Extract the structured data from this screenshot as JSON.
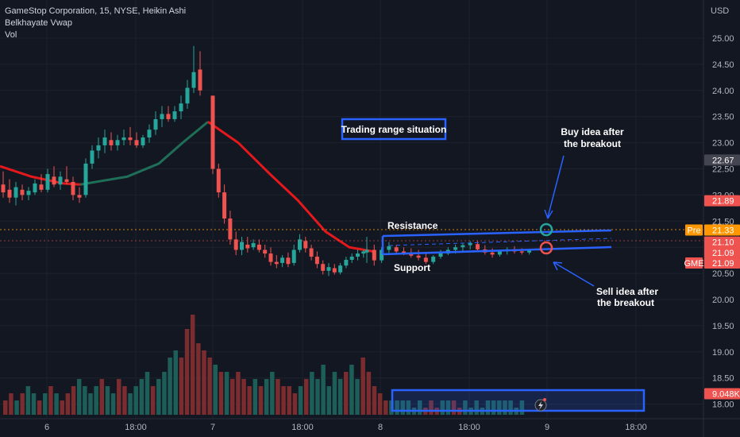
{
  "legend": {
    "line1": "GameStop Corporation, 15, NYSE, Heikin Ashi",
    "line2": "Belkhayate Vwap",
    "line3": "Vol"
  },
  "colors": {
    "background": "#131722",
    "up": "#26a69a",
    "down": "#ef5350",
    "vwap_red": "#e5181c",
    "vwap_green": "#1f6e57",
    "annotation_blue": "#2962ff",
    "axis_text": "#b2b5be",
    "orange": "#ff9800"
  },
  "chart_data": {
    "type": "candlestick",
    "currency": "USD",
    "y_ticks": [
      "25.00",
      "24.50",
      "24.00",
      "23.50",
      "23.00",
      "22.50",
      "22.00",
      "21.50",
      "21.00",
      "20.50",
      "20.00",
      "19.50",
      "19.00",
      "18.50",
      "18.00"
    ],
    "ylim": [
      17.85,
      25.35
    ],
    "x_ticks": [
      "6",
      "18:00",
      "7",
      "18:00",
      "8",
      "18:00",
      "9",
      "18:00"
    ],
    "price_tags": [
      {
        "label": "22.67",
        "value": 22.67,
        "color": "#434651"
      },
      {
        "label": "21.89",
        "value": 21.89,
        "color": "#ef5350"
      },
      {
        "label": "21.33",
        "value": 21.33,
        "color": "#ff9800",
        "prefix": "Pre"
      },
      {
        "label": "21.10",
        "value": 21.1,
        "color": "#ef5350"
      },
      {
        "label": "21.09",
        "value": 20.9,
        "color": "#ef5350"
      },
      {
        "label": "21.09",
        "value": 20.7,
        "color": "#ef5350",
        "prefix": "GME"
      },
      {
        "label": "9.048K",
        "value": 18.2,
        "color": "#ef5350"
      }
    ],
    "annotations": {
      "title_box": "Trading range situation",
      "resistance": "Resistance",
      "support": "Support",
      "buy": [
        "Buy idea after",
        "the breakout"
      ],
      "sell": [
        "Sell idea after",
        "the breakout"
      ]
    },
    "candles_day1": [
      {
        "o": 22.2,
        "h": 22.45,
        "l": 21.95,
        "c": 22.05
      },
      {
        "o": 22.1,
        "h": 22.3,
        "l": 21.85,
        "c": 21.95
      },
      {
        "o": 21.95,
        "h": 22.25,
        "l": 21.8,
        "c": 22.15
      },
      {
        "o": 22.1,
        "h": 22.2,
        "l": 21.9,
        "c": 22.0
      },
      {
        "o": 22.0,
        "h": 22.15,
        "l": 21.9,
        "c": 22.08
      },
      {
        "o": 22.05,
        "h": 22.3,
        "l": 22.0,
        "c": 22.22
      },
      {
        "o": 22.2,
        "h": 22.4,
        "l": 22.05,
        "c": 22.1
      },
      {
        "o": 22.1,
        "h": 22.5,
        "l": 22.05,
        "c": 22.4
      },
      {
        "o": 22.35,
        "h": 22.55,
        "l": 22.15,
        "c": 22.2
      },
      {
        "o": 22.2,
        "h": 22.45,
        "l": 22.1,
        "c": 22.35
      },
      {
        "o": 22.3,
        "h": 22.55,
        "l": 22.2,
        "c": 22.25
      },
      {
        "o": 22.25,
        "h": 22.35,
        "l": 21.9,
        "c": 22.0
      },
      {
        "o": 22.0,
        "h": 22.15,
        "l": 21.85,
        "c": 21.95
      },
      {
        "o": 22.0,
        "h": 22.7,
        "l": 21.95,
        "c": 22.6
      },
      {
        "o": 22.6,
        "h": 22.95,
        "l": 22.5,
        "c": 22.85
      },
      {
        "o": 22.85,
        "h": 23.1,
        "l": 22.7,
        "c": 22.95
      },
      {
        "o": 22.95,
        "h": 23.25,
        "l": 22.8,
        "c": 23.1
      },
      {
        "o": 23.05,
        "h": 23.2,
        "l": 22.85,
        "c": 22.95
      },
      {
        "o": 22.95,
        "h": 23.15,
        "l": 22.85,
        "c": 23.05
      },
      {
        "o": 23.05,
        "h": 23.25,
        "l": 22.95,
        "c": 23.1
      },
      {
        "o": 23.1,
        "h": 23.3,
        "l": 22.95,
        "c": 23.05
      },
      {
        "o": 23.05,
        "h": 23.2,
        "l": 22.9,
        "c": 22.95
      },
      {
        "o": 22.95,
        "h": 23.15,
        "l": 22.9,
        "c": 23.1
      },
      {
        "o": 23.1,
        "h": 23.35,
        "l": 23.0,
        "c": 23.25
      },
      {
        "o": 23.25,
        "h": 23.6,
        "l": 23.15,
        "c": 23.45
      },
      {
        "o": 23.45,
        "h": 23.7,
        "l": 23.3,
        "c": 23.55
      },
      {
        "o": 23.55,
        "h": 23.7,
        "l": 23.4,
        "c": 23.45
      },
      {
        "o": 23.45,
        "h": 23.7,
        "l": 23.4,
        "c": 23.6
      },
      {
        "o": 23.6,
        "h": 23.9,
        "l": 23.45,
        "c": 23.75
      },
      {
        "o": 23.75,
        "h": 24.2,
        "l": 23.65,
        "c": 24.05
      },
      {
        "o": 24.05,
        "h": 24.85,
        "l": 23.95,
        "c": 24.35
      },
      {
        "o": 24.4,
        "h": 24.75,
        "l": 23.9,
        "c": 24.0
      }
    ],
    "candles_day2": [
      {
        "o": 23.9,
        "h": 23.9,
        "l": 22.4,
        "c": 22.5
      },
      {
        "o": 22.5,
        "h": 22.6,
        "l": 21.95,
        "c": 22.05
      },
      {
        "o": 22.05,
        "h": 22.2,
        "l": 21.45,
        "c": 21.55
      },
      {
        "o": 21.55,
        "h": 21.7,
        "l": 21.05,
        "c": 21.15
      },
      {
        "o": 21.15,
        "h": 21.3,
        "l": 20.85,
        "c": 20.95
      },
      {
        "o": 20.95,
        "h": 21.2,
        "l": 20.85,
        "c": 21.1
      },
      {
        "o": 21.05,
        "h": 21.2,
        "l": 20.9,
        "c": 20.98
      },
      {
        "o": 21.0,
        "h": 21.15,
        "l": 20.95,
        "c": 21.08
      },
      {
        "o": 21.05,
        "h": 21.15,
        "l": 20.9,
        "c": 20.95
      },
      {
        "o": 20.95,
        "h": 21.05,
        "l": 20.8,
        "c": 20.88
      },
      {
        "o": 20.88,
        "h": 21.0,
        "l": 20.65,
        "c": 20.72
      },
      {
        "o": 20.72,
        "h": 20.85,
        "l": 20.6,
        "c": 20.68
      },
      {
        "o": 20.7,
        "h": 20.85,
        "l": 20.62,
        "c": 20.8
      },
      {
        "o": 20.8,
        "h": 20.9,
        "l": 20.62,
        "c": 20.68
      },
      {
        "o": 20.7,
        "h": 21.05,
        "l": 20.65,
        "c": 20.95
      },
      {
        "o": 20.95,
        "h": 21.25,
        "l": 20.9,
        "c": 21.15
      },
      {
        "o": 21.12,
        "h": 21.2,
        "l": 20.9,
        "c": 20.98
      },
      {
        "o": 20.98,
        "h": 21.05,
        "l": 20.75,
        "c": 20.82
      },
      {
        "o": 20.82,
        "h": 20.92,
        "l": 20.6,
        "c": 20.68
      },
      {
        "o": 20.68,
        "h": 20.75,
        "l": 20.48,
        "c": 20.55
      },
      {
        "o": 20.55,
        "h": 20.7,
        "l": 20.45,
        "c": 20.62
      },
      {
        "o": 20.6,
        "h": 20.68,
        "l": 20.48,
        "c": 20.52
      },
      {
        "o": 20.52,
        "h": 20.7,
        "l": 20.48,
        "c": 20.65
      },
      {
        "o": 20.65,
        "h": 20.82,
        "l": 20.6,
        "c": 20.76
      },
      {
        "o": 20.76,
        "h": 20.88,
        "l": 20.7,
        "c": 20.82
      },
      {
        "o": 20.82,
        "h": 20.95,
        "l": 20.75,
        "c": 20.88
      },
      {
        "o": 20.88,
        "h": 20.95,
        "l": 20.8,
        "c": 20.92
      }
    ],
    "candles_day3": [
      {
        "o": 20.9,
        "h": 21.2,
        "l": 20.7,
        "c": 20.95
      },
      {
        "o": 20.95,
        "h": 21.05,
        "l": 20.65,
        "c": 20.75
      },
      {
        "o": 20.75,
        "h": 21.0,
        "l": 20.7,
        "c": 20.95
      },
      {
        "o": 20.95,
        "h": 21.1,
        "l": 20.85,
        "c": 21.02
      },
      {
        "o": 21.0,
        "h": 21.05,
        "l": 20.88,
        "c": 20.92
      },
      {
        "o": 20.92,
        "h": 21.0,
        "l": 20.85,
        "c": 20.88
      },
      {
        "o": 20.88,
        "h": 20.98,
        "l": 20.8,
        "c": 20.84
      },
      {
        "o": 20.84,
        "h": 20.95,
        "l": 20.75,
        "c": 20.8
      },
      {
        "o": 20.8,
        "h": 20.9,
        "l": 20.68,
        "c": 20.72
      },
      {
        "o": 20.72,
        "h": 20.85,
        "l": 20.68,
        "c": 20.82
      },
      {
        "o": 20.82,
        "h": 20.95,
        "l": 20.78,
        "c": 20.9
      },
      {
        "o": 20.88,
        "h": 21.0,
        "l": 20.85,
        "c": 20.95
      },
      {
        "o": 20.95,
        "h": 21.05,
        "l": 20.88,
        "c": 21.0
      },
      {
        "o": 21.0,
        "h": 21.08,
        "l": 20.92,
        "c": 21.04
      },
      {
        "o": 21.04,
        "h": 21.12,
        "l": 20.96,
        "c": 21.08
      },
      {
        "o": 21.06,
        "h": 21.12,
        "l": 20.92,
        "c": 20.96
      },
      {
        "o": 20.96,
        "h": 21.04,
        "l": 20.86,
        "c": 20.9
      },
      {
        "o": 20.9,
        "h": 20.98,
        "l": 20.8,
        "c": 20.86
      },
      {
        "o": 20.86,
        "h": 20.95,
        "l": 20.82,
        "c": 20.92
      },
      {
        "o": 20.92,
        "h": 21.0,
        "l": 20.86,
        "c": 20.96
      },
      {
        "o": 20.96,
        "h": 21.02,
        "l": 20.88,
        "c": 20.92
      },
      {
        "o": 20.92,
        "h": 20.98,
        "l": 20.86,
        "c": 20.9
      },
      {
        "o": 20.9,
        "h": 20.96,
        "l": 20.86,
        "c": 20.94
      }
    ],
    "volumes": [
      2,
      3,
      2,
      3,
      4,
      3,
      2,
      3,
      4,
      3,
      2,
      3,
      4,
      5,
      4,
      3,
      4,
      5,
      4,
      3,
      5,
      4,
      3,
      4,
      5,
      6,
      4,
      5,
      6,
      8,
      9,
      8,
      12,
      14,
      10,
      9,
      8,
      7,
      6,
      6,
      5,
      6,
      5,
      4,
      5,
      4,
      5,
      6,
      5,
      4,
      4,
      3,
      4,
      5,
      6,
      5,
      7,
      4,
      6,
      5,
      6,
      7,
      5,
      8,
      6,
      4,
      3,
      2,
      2,
      2,
      2,
      2,
      1,
      2,
      1,
      2,
      1,
      2,
      2,
      2,
      1,
      2,
      1,
      2,
      1,
      2,
      2,
      2,
      2,
      2,
      1,
      2
    ],
    "vwap_red": [
      [
        0,
        22.55
      ],
      [
        40,
        22.35
      ],
      [
        80,
        22.22
      ],
      [
        101,
        22.2
      ]
    ],
    "vwap_green": [
      [
        101,
        22.2
      ],
      [
        160,
        22.35
      ],
      [
        200,
        22.6
      ],
      [
        230,
        23.0
      ],
      [
        262,
        23.4
      ]
    ],
    "vwap_red2": [
      [
        262,
        23.4
      ],
      [
        300,
        23.0
      ],
      [
        340,
        22.4
      ],
      [
        375,
        21.9
      ],
      [
        410,
        21.3
      ],
      [
        440,
        21.0
      ],
      [
        470,
        20.92
      ]
    ]
  }
}
